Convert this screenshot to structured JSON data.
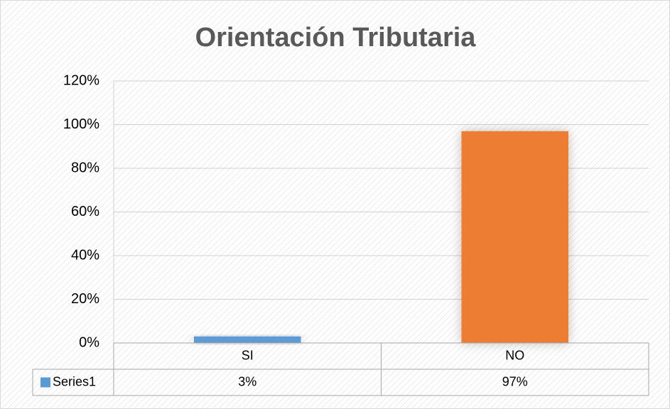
{
  "chart_data": {
    "type": "bar",
    "title": "Orientación Tributaria",
    "categories": [
      "SI",
      "NO"
    ],
    "series": [
      {
        "name": "Series1",
        "color": "#5b9bd5",
        "colors": [
          "#5b9bd5",
          "#ed7d31"
        ],
        "values": [
          3,
          97
        ],
        "value_labels": [
          "3%",
          "97%"
        ]
      }
    ],
    "ylim": [
      0,
      120
    ],
    "yticks": [
      {
        "value": 0,
        "label": "0%"
      },
      {
        "value": 20,
        "label": "20%"
      },
      {
        "value": 40,
        "label": "40%"
      },
      {
        "value": 60,
        "label": "60%"
      },
      {
        "value": 80,
        "label": "80%"
      },
      {
        "value": 100,
        "label": "100%"
      },
      {
        "value": 120,
        "label": "120%"
      }
    ],
    "grid": true,
    "data_table": true
  }
}
